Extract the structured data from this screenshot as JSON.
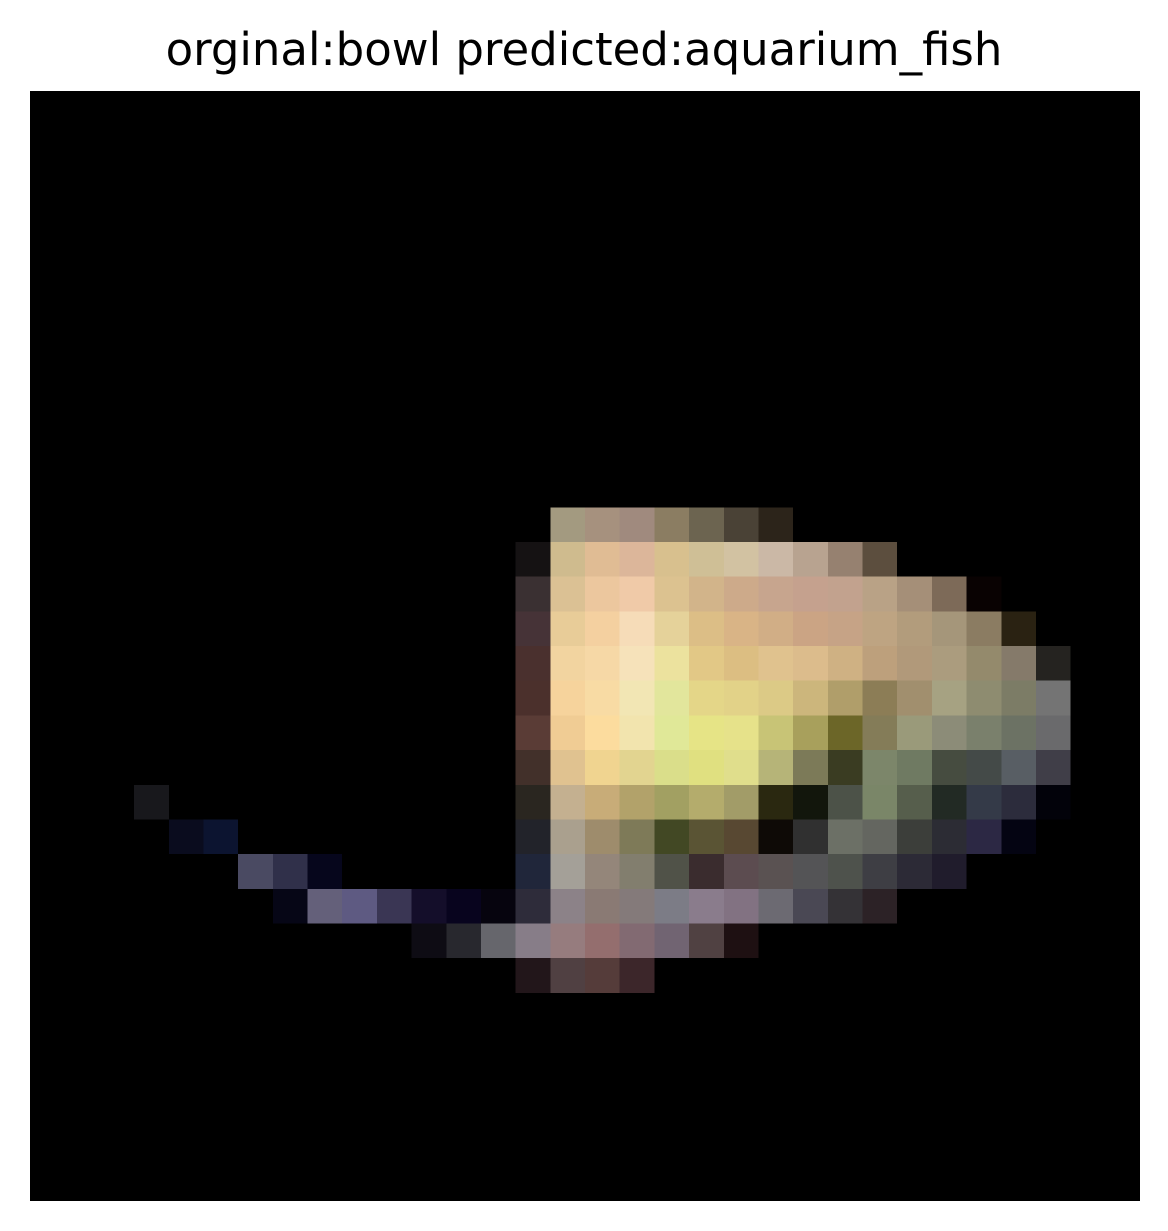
{
  "figure": {
    "title": "orginal:bowl predicted:aquarium_fish",
    "original_label": "bowl",
    "predicted_label": "aquarium_fish"
  },
  "image": {
    "background_color": "#000000",
    "subject": "pixelated-bowl-image"
  }
}
